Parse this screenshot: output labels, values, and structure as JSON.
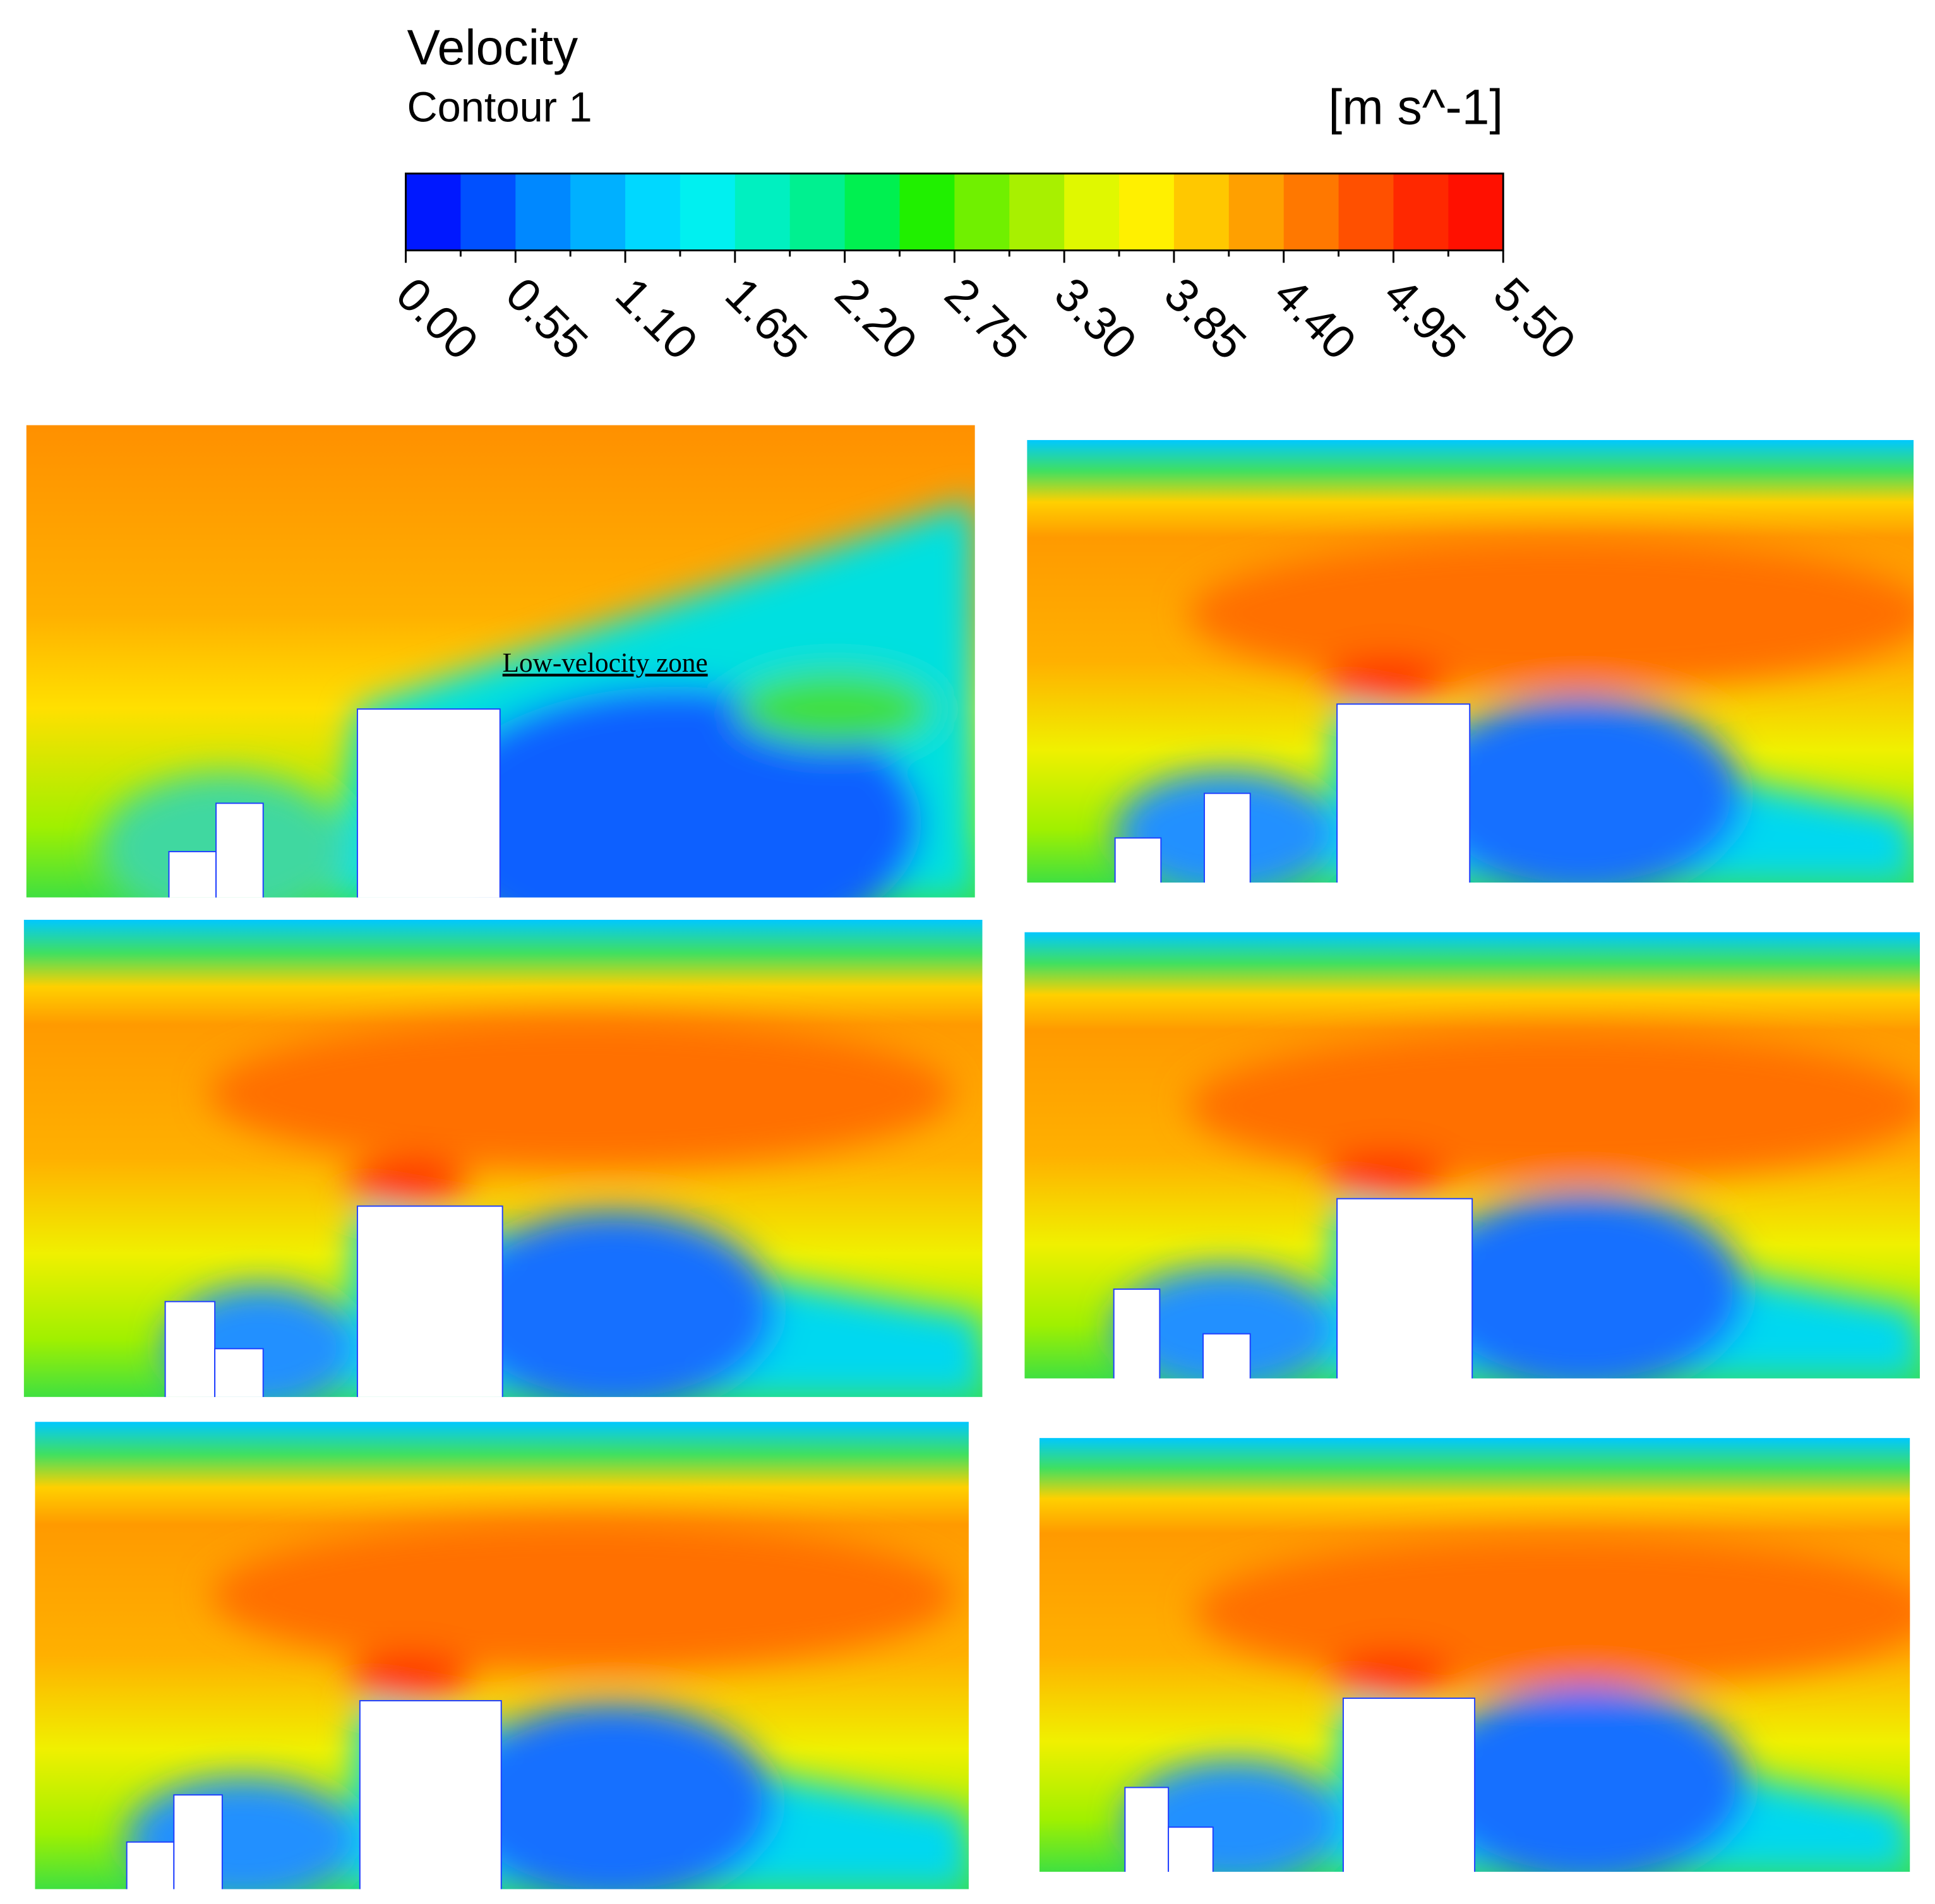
{
  "legend": {
    "title": "Velocity",
    "subtitle": "Contour 1",
    "unit": "[m s^-1]",
    "ticks": [
      "0.00",
      "0.55",
      "1.10",
      "1.65",
      "2.20",
      "2.75",
      "3.30",
      "3.85",
      "4.40",
      "4.95",
      "5.50"
    ]
  },
  "annotation": "Low-velocity zone"
}
